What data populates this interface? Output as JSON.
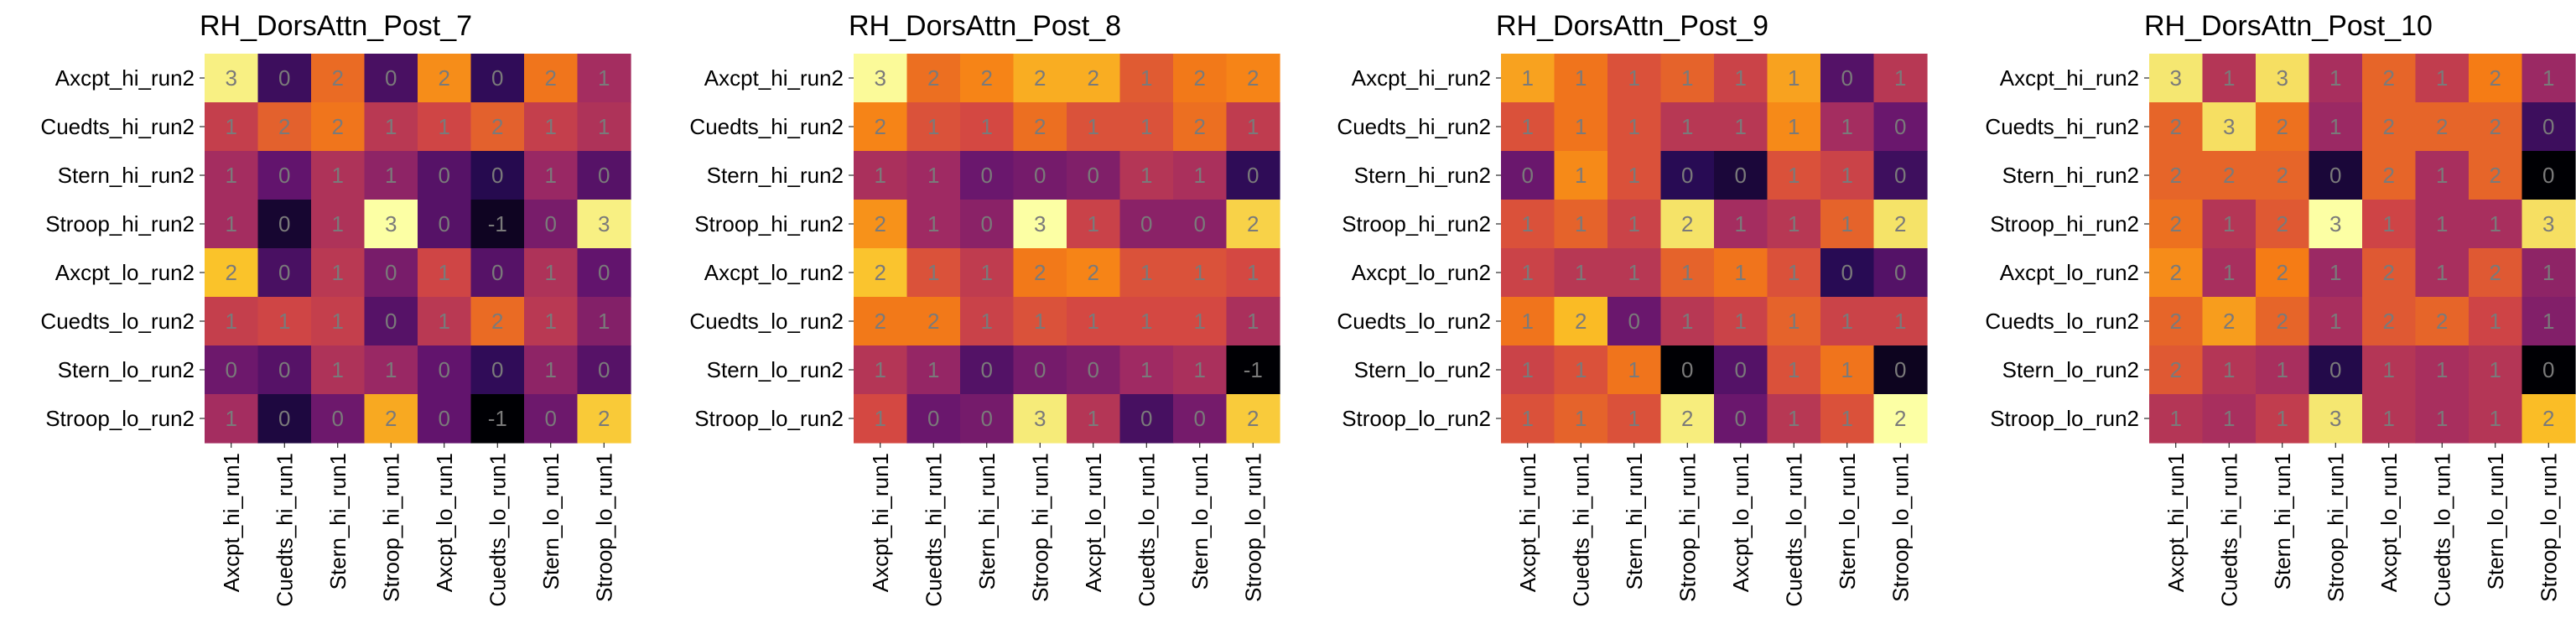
{
  "chart_data": [
    {
      "type": "heatmap",
      "title": "RH_DorsAttn_Post_7",
      "x_categories": [
        "Axcpt_hi_run1",
        "Cuedts_hi_run1",
        "Stern_hi_run1",
        "Stroop_hi_run1",
        "Axcpt_lo_run1",
        "Cuedts_lo_run1",
        "Stern_lo_run1",
        "Stroop_lo_run1"
      ],
      "y_categories": [
        "Axcpt_hi_run2",
        "Cuedts_hi_run2",
        "Stern_hi_run2",
        "Stroop_hi_run2",
        "Axcpt_lo_run2",
        "Cuedts_lo_run2",
        "Stern_lo_run2",
        "Stroop_lo_run2"
      ],
      "values": [
        [
          3.0,
          -0.1,
          1.6,
          0.0,
          1.9,
          -0.2,
          1.7,
          0.8
        ],
        [
          1.1,
          1.5,
          1.7,
          1.0,
          1.2,
          1.5,
          1.1,
          0.9
        ],
        [
          0.8,
          0.2,
          0.9,
          0.6,
          0.1,
          -0.3,
          0.7,
          0.1
        ],
        [
          0.8,
          -0.5,
          0.9,
          3.3,
          0.1,
          -0.6,
          0.4,
          3.0
        ],
        [
          2.3,
          0.0,
          1.0,
          0.4,
          1.2,
          0.1,
          0.9,
          0.2
        ],
        [
          1.1,
          1.2,
          1.1,
          0.1,
          1.0,
          1.6,
          1.0,
          0.5
        ],
        [
          0.3,
          0.1,
          0.9,
          0.7,
          0.2,
          -0.2,
          0.6,
          0.1
        ],
        [
          0.8,
          -0.4,
          0.3,
          2.1,
          0.2,
          -0.8,
          0.3,
          2.4
        ]
      ]
    },
    {
      "type": "heatmap",
      "title": "RH_DorsAttn_Post_8",
      "x_categories": [
        "Axcpt_hi_run1",
        "Cuedts_hi_run1",
        "Stern_hi_run1",
        "Stroop_hi_run1",
        "Axcpt_lo_run1",
        "Cuedts_lo_run1",
        "Stern_lo_run1",
        "Stroop_lo_run1"
      ],
      "y_categories": [
        "Axcpt_hi_run2",
        "Cuedts_hi_run2",
        "Stern_hi_run2",
        "Stroop_hi_run2",
        "Axcpt_lo_run2",
        "Cuedts_lo_run2",
        "Stern_lo_run2",
        "Stroop_lo_run2"
      ],
      "values": [
        [
          3.1,
          1.5,
          1.7,
          2.0,
          2.0,
          1.3,
          1.6,
          1.7
        ],
        [
          1.7,
          1.2,
          1.1,
          1.5,
          1.2,
          1.2,
          1.5,
          0.9
        ],
        [
          0.7,
          0.6,
          0.1,
          0.2,
          0.3,
          0.8,
          0.7,
          -0.4
        ],
        [
          1.8,
          0.6,
          0.4,
          3.2,
          1.0,
          0.4,
          0.4,
          2.4
        ],
        [
          2.2,
          1.2,
          0.9,
          1.6,
          1.7,
          1.2,
          1.2,
          1.1
        ],
        [
          1.6,
          1.6,
          1.0,
          1.2,
          1.1,
          1.1,
          1.1,
          0.7
        ],
        [
          0.8,
          0.5,
          -0.1,
          0.2,
          0.3,
          0.6,
          0.7,
          -1.0
        ],
        [
          1.1,
          0.1,
          0.2,
          2.8,
          0.8,
          -0.2,
          0.2,
          2.3
        ]
      ]
    },
    {
      "type": "heatmap",
      "title": "RH_DorsAttn_Post_9",
      "x_categories": [
        "Axcpt_hi_run1",
        "Cuedts_hi_run1",
        "Stern_hi_run1",
        "Stroop_hi_run1",
        "Axcpt_lo_run1",
        "Cuedts_lo_run1",
        "Stern_lo_run1",
        "Stroop_lo_run1"
      ],
      "y_categories": [
        "Axcpt_hi_run2",
        "Cuedts_hi_run2",
        "Stern_hi_run2",
        "Stroop_hi_run2",
        "Axcpt_lo_run2",
        "Cuedts_lo_run2",
        "Stern_lo_run2",
        "Stroop_lo_run2"
      ],
      "values": [
        [
          1.4,
          1.2,
          1.0,
          1.1,
          0.9,
          1.4,
          0.3,
          0.8
        ],
        [
          1.0,
          1.2,
          1.0,
          0.8,
          0.8,
          1.3,
          0.7,
          0.4
        ],
        [
          0.4,
          1.3,
          1.0,
          0.1,
          0.0,
          1.0,
          0.9,
          0.2
        ],
        [
          1.0,
          1.1,
          0.9,
          1.8,
          0.7,
          0.8,
          1.1,
          1.8
        ],
        [
          0.9,
          0.8,
          0.8,
          1.1,
          1.2,
          1.0,
          0.1,
          0.3
        ],
        [
          1.2,
          1.5,
          0.4,
          0.8,
          0.9,
          1.1,
          0.9,
          0.9
        ],
        [
          0.9,
          1.0,
          1.2,
          -0.2,
          0.3,
          1.0,
          1.2,
          -0.1
        ],
        [
          1.0,
          1.1,
          1.0,
          1.9,
          0.4,
          0.8,
          1.0,
          2.1
        ]
      ]
    },
    {
      "type": "heatmap",
      "title": "RH_DorsAttn_Post_10",
      "x_categories": [
        "Axcpt_hi_run1",
        "Cuedts_hi_run1",
        "Stern_hi_run1",
        "Stroop_hi_run1",
        "Axcpt_lo_run1",
        "Cuedts_lo_run1",
        "Stern_lo_run1",
        "Stroop_lo_run1"
      ],
      "y_categories": [
        "Axcpt_hi_run2",
        "Cuedts_hi_run2",
        "Stern_hi_run2",
        "Stroop_hi_run2",
        "Axcpt_lo_run2",
        "Cuedts_lo_run2",
        "Stern_lo_run2",
        "Stroop_lo_run2"
      ],
      "values": [
        [
          2.7,
          1.1,
          2.6,
          1.0,
          1.6,
          1.2,
          1.8,
          0.9
        ],
        [
          1.6,
          2.6,
          1.7,
          0.9,
          1.6,
          1.6,
          1.6,
          0.2
        ],
        [
          1.6,
          1.6,
          1.6,
          -0.1,
          1.6,
          1.0,
          1.6,
          -0.4
        ],
        [
          1.7,
          1.1,
          1.5,
          3.1,
          1.3,
          1.0,
          1.0,
          2.6
        ],
        [
          1.9,
          1.0,
          1.8,
          0.9,
          1.5,
          1.0,
          1.5,
          0.8
        ],
        [
          1.6,
          2.0,
          1.6,
          1.0,
          1.5,
          1.6,
          1.3,
          0.7
        ],
        [
          1.5,
          1.1,
          1.0,
          0.0,
          1.1,
          1.0,
          1.1,
          -0.4
        ],
        [
          1.1,
          1.0,
          1.2,
          2.7,
          1.1,
          1.0,
          1.1,
          2.2
        ]
      ]
    }
  ]
}
